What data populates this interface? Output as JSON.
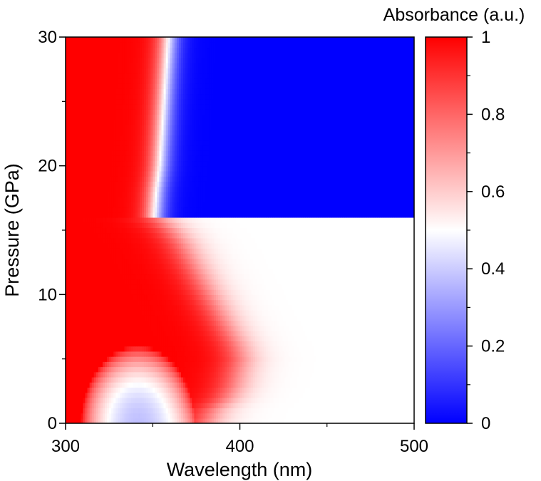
{
  "chart_data": {
    "type": "heatmap",
    "title": "",
    "xlabel": "Wavelength (nm)",
    "ylabel": "Pressure (GPa)",
    "xlim": [
      300,
      500
    ],
    "ylim": [
      0,
      30
    ],
    "x_ticks": [
      300,
      400,
      500
    ],
    "y_ticks": [
      0,
      10,
      20,
      30
    ],
    "colorbar": {
      "title": "Absorbance (a.u.)",
      "range": [
        0,
        1
      ],
      "ticks": [
        "0",
        "0.2",
        "0.4",
        "0.6",
        "0.8",
        "1"
      ],
      "colormap": [
        "#0000ff",
        "#ffffff",
        "#ff0000"
      ],
      "placement": "right"
    },
    "absorption_edge": {
      "description_units": "wavelength (nm) at which absorbance = 0.5, per pressure (GPa)",
      "pressure": [
        0,
        1,
        2,
        3,
        4,
        5,
        6,
        7,
        8,
        9,
        10,
        11,
        12,
        13,
        14,
        15,
        15.9,
        16.1,
        18,
        20,
        22,
        24,
        26,
        28,
        30
      ],
      "edge_nm": [
        380,
        384,
        392,
        396,
        398,
        400,
        398,
        394,
        390,
        386,
        382,
        378,
        374,
        370,
        366,
        360,
        353,
        351,
        352,
        354,
        355,
        356,
        357,
        358,
        359
      ]
    },
    "low_absorbance_pocket": {
      "description_units": "region of reduced absorbance near the UV end at low pressure",
      "pressure_range": [
        0,
        2.5
      ],
      "wavelength_range": [
        315,
        352
      ]
    }
  }
}
